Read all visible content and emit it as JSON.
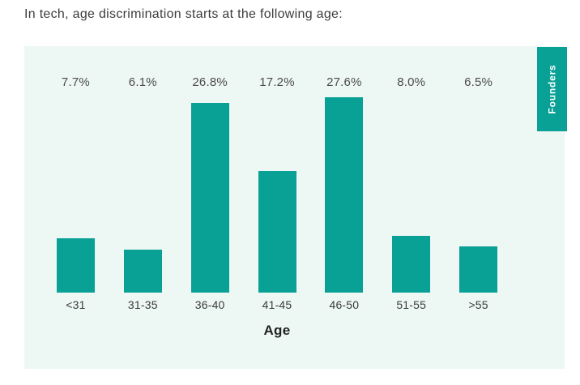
{
  "title": "In tech, age discrimination starts at the following age:",
  "panel": {
    "background_color": "#edf7f4"
  },
  "series_tab": {
    "label": "Founders",
    "background_color": "#09a096",
    "text_color": "#ffffff"
  },
  "chart_data": {
    "type": "bar",
    "categories": [
      "<31",
      "31-35",
      "36-40",
      "41-45",
      "46-50",
      "51-55",
      ">55"
    ],
    "values": [
      7.7,
      6.1,
      26.8,
      17.2,
      27.6,
      8.0,
      6.5
    ],
    "value_labels": [
      "7.7%",
      "6.1%",
      "26.8%",
      "17.2%",
      "27.6%",
      "8.0%",
      "6.5%"
    ],
    "series_label": "Founders",
    "xlabel": "Age",
    "bar_color": "#09a096",
    "grid": "off",
    "y_axis_visible": false,
    "value_label_position": "fixed-top-row"
  }
}
